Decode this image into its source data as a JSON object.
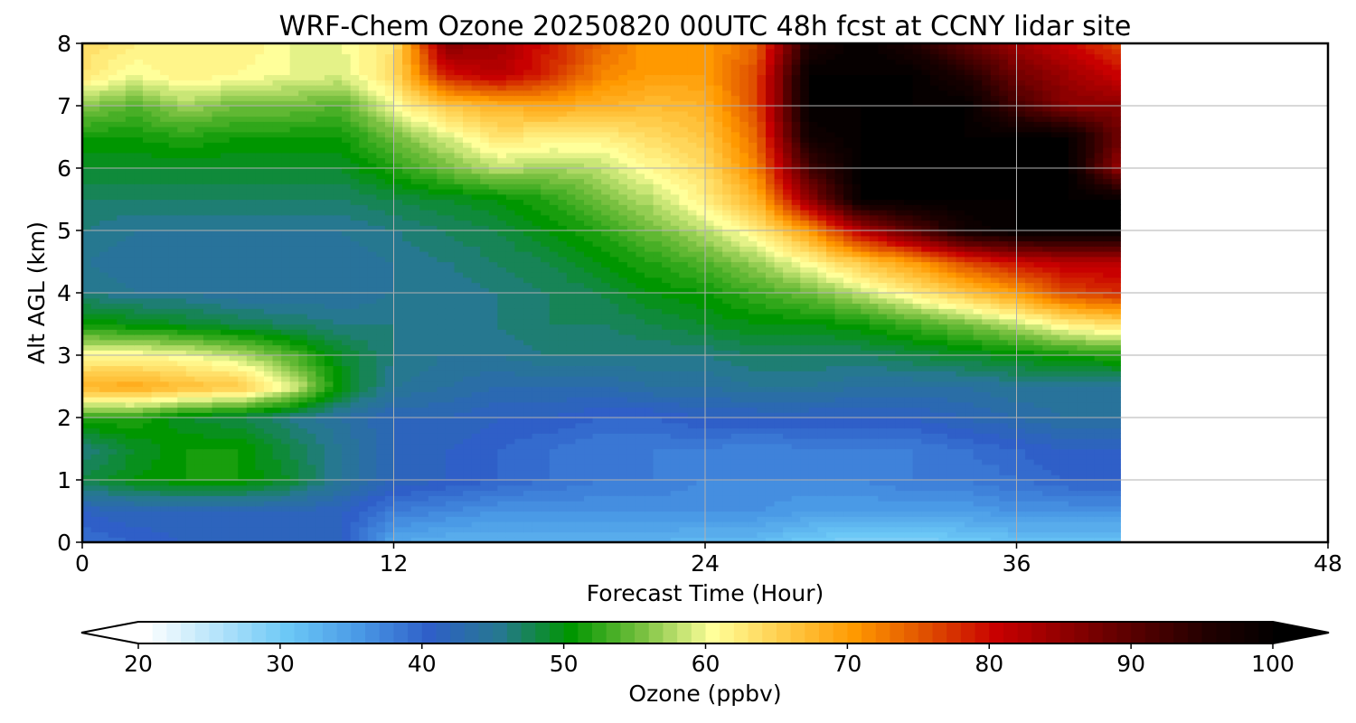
{
  "chart_data": {
    "type": "heatmap",
    "title": "WRF-Chem Ozone  20250820 00UTC 48h fcst at CCNY lidar site",
    "xlabel": "Forecast Time (Hour)",
    "ylabel": "Alt AGL (km)",
    "xlim": [
      0,
      48
    ],
    "ylim": [
      0,
      8
    ],
    "xticks": [
      0,
      12,
      24,
      36,
      48
    ],
    "yticks": [
      0,
      1,
      2,
      3,
      4,
      5,
      6,
      7,
      8
    ],
    "grid": true,
    "data_end_hour": 40,
    "colorbar": {
      "label": "Ozone  (ppbv)",
      "min": 20,
      "max": 100,
      "step": 1,
      "ticks": [
        20,
        30,
        40,
        50,
        60,
        70,
        80,
        90,
        100
      ],
      "extend": "both",
      "stops": [
        {
          "v": 20,
          "c": "#ffffff"
        },
        {
          "v": 30,
          "c": "#6cc8f6"
        },
        {
          "v": 35,
          "c": "#4a9ae6"
        },
        {
          "v": 40,
          "c": "#2f5fc8"
        },
        {
          "v": 45,
          "c": "#267890"
        },
        {
          "v": 50,
          "c": "#009600"
        },
        {
          "v": 55,
          "c": "#78c040"
        },
        {
          "v": 60,
          "c": "#ffff9a"
        },
        {
          "v": 65,
          "c": "#ffcc4a"
        },
        {
          "v": 70,
          "c": "#ff9900"
        },
        {
          "v": 75,
          "c": "#e05000"
        },
        {
          "v": 80,
          "c": "#c80000"
        },
        {
          "v": 88,
          "c": "#6a0000"
        },
        {
          "v": 95,
          "c": "#200000"
        },
        {
          "v": 100,
          "c": "#000000"
        }
      ]
    },
    "profile_hours": [
      0,
      2,
      4,
      6,
      8,
      10,
      12,
      14,
      16,
      18,
      20,
      22,
      24,
      26,
      28,
      30,
      32,
      34,
      36,
      38,
      40
    ],
    "profile_levels_km": [
      0,
      0.5,
      1,
      1.5,
      2,
      2.5,
      3,
      3.5,
      4,
      4.5,
      5,
      5.5,
      6,
      6.5,
      7,
      7.5,
      8
    ],
    "ozone_ppbv": [
      [
        39,
        40,
        41,
        41,
        42,
        41,
        34,
        33,
        33,
        33,
        33,
        33,
        32,
        32,
        30,
        29,
        29,
        30,
        31,
        31,
        31
      ],
      [
        41,
        42,
        42,
        42,
        42,
        41,
        38,
        37,
        36,
        36,
        36,
        36,
        36,
        36,
        35,
        35,
        35,
        35,
        36,
        36,
        36
      ],
      [
        48,
        50,
        51,
        51,
        49,
        45,
        42,
        41,
        40,
        39,
        38,
        38,
        37,
        37,
        37,
        37,
        38,
        38,
        39,
        40,
        40
      ],
      [
        46,
        49,
        51,
        51,
        48,
        45,
        42,
        41,
        40,
        39,
        38,
        38,
        38,
        37,
        38,
        38,
        38,
        39,
        40,
        41,
        41
      ],
      [
        52,
        52,
        49,
        48,
        46,
        44,
        42,
        42,
        41,
        41,
        40,
        40,
        41,
        41,
        41,
        41,
        41,
        42,
        43,
        44,
        44
      ],
      [
        68,
        69,
        67,
        66,
        60,
        50,
        45,
        44,
        43,
        43,
        43,
        44,
        44,
        45,
        45,
        44,
        44,
        44,
        45,
        45,
        45
      ],
      [
        61,
        61,
        60,
        58,
        54,
        49,
        46,
        45,
        45,
        46,
        46,
        46,
        46,
        47,
        47,
        47,
        48,
        49,
        50,
        51,
        52
      ],
      [
        51,
        50,
        49,
        48,
        47,
        46,
        46,
        46,
        46,
        47,
        47,
        48,
        49,
        50,
        50,
        51,
        53,
        55,
        58,
        62,
        64
      ],
      [
        46,
        45,
        45,
        44,
        44,
        44,
        45,
        45,
        46,
        47,
        48,
        50,
        51,
        53,
        55,
        58,
        62,
        66,
        70,
        76,
        78
      ],
      [
        45,
        44,
        44,
        44,
        44,
        44,
        45,
        46,
        47,
        48,
        50,
        52,
        54,
        57,
        61,
        66,
        70,
        76,
        80,
        82,
        82
      ],
      [
        46,
        45,
        45,
        45,
        45,
        45,
        46,
        47,
        48,
        50,
        52,
        55,
        58,
        62,
        70,
        82,
        90,
        98,
        100,
        100,
        100
      ],
      [
        47,
        47,
        47,
        47,
        47,
        47,
        48,
        49,
        50,
        52,
        55,
        58,
        62,
        68,
        85,
        100,
        100,
        100,
        100,
        100,
        100
      ],
      [
        49,
        49,
        49,
        49,
        49,
        49,
        52,
        55,
        58,
        57,
        58,
        61,
        64,
        72,
        92,
        100,
        100,
        100,
        100,
        100,
        84
      ],
      [
        51,
        51,
        52,
        51,
        51,
        51,
        55,
        59,
        63,
        62,
        62,
        64,
        66,
        74,
        98,
        100,
        100,
        100,
        100,
        100,
        88
      ],
      [
        56,
        54,
        57,
        55,
        55,
        54,
        60,
        66,
        68,
        69,
        68,
        67,
        68,
        76,
        100,
        100,
        100,
        100,
        92,
        86,
        86
      ],
      [
        63,
        60,
        62,
        61,
        60,
        59,
        64,
        79,
        82,
        78,
        72,
        70,
        70,
        76,
        100,
        100,
        100,
        96,
        88,
        84,
        80
      ],
      [
        64,
        62,
        62,
        62,
        60,
        60,
        63,
        86,
        84,
        79,
        74,
        70,
        70,
        74,
        96,
        100,
        96,
        90,
        84,
        80,
        76
      ]
    ]
  }
}
